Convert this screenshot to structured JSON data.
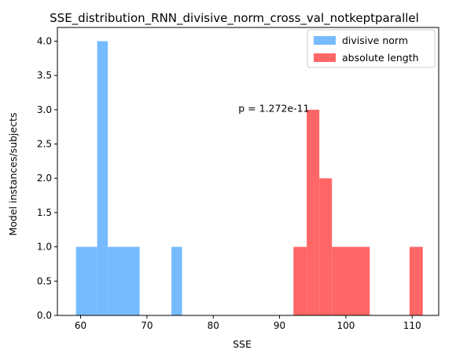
{
  "chart_data": {
    "type": "bar",
    "title": "SSE_distribution_RNN_divisive_norm_cross_val_notkeptparallel",
    "xlabel": "SSE",
    "ylabel": "Model instances/subjects",
    "xlim": [
      56.5,
      114.0
    ],
    "ylim": [
      0.0,
      4.2
    ],
    "x_ticks": [
      60,
      70,
      80,
      90,
      100,
      110
    ],
    "y_ticks": [
      0.0,
      0.5,
      1.0,
      1.5,
      2.0,
      2.5,
      3.0,
      3.5,
      4.0
    ],
    "y_tick_labels": [
      "0.0",
      "0.5",
      "1.0",
      "1.5",
      "2.0",
      "2.5",
      "3.0",
      "3.5",
      "4.0"
    ],
    "grid": false,
    "legend_position": "top-right",
    "series": [
      {
        "name": "divisive norm",
        "color": "#77bbff",
        "bins": [
          {
            "x0": 59.3,
            "x1": 62.5,
            "value": 1
          },
          {
            "x0": 62.5,
            "x1": 64.1,
            "value": 4
          },
          {
            "x0": 64.1,
            "x1": 68.9,
            "value": 1
          },
          {
            "x0": 73.7,
            "x1": 75.3,
            "value": 1
          }
        ]
      },
      {
        "name": "absolute length",
        "color": "#ff6666",
        "bins": [
          {
            "x0": 92.1,
            "x1": 94.1,
            "value": 1
          },
          {
            "x0": 94.1,
            "x1": 96.0,
            "value": 3
          },
          {
            "x0": 96.0,
            "x1": 97.9,
            "value": 2
          },
          {
            "x0": 97.9,
            "x1": 103.6,
            "value": 1
          },
          {
            "x0": 109.6,
            "x1": 111.6,
            "value": 1
          }
        ]
      }
    ],
    "annotations": [
      {
        "text": "p = 1.272e-11",
        "x": 83.8,
        "y": 2.97
      }
    ]
  }
}
